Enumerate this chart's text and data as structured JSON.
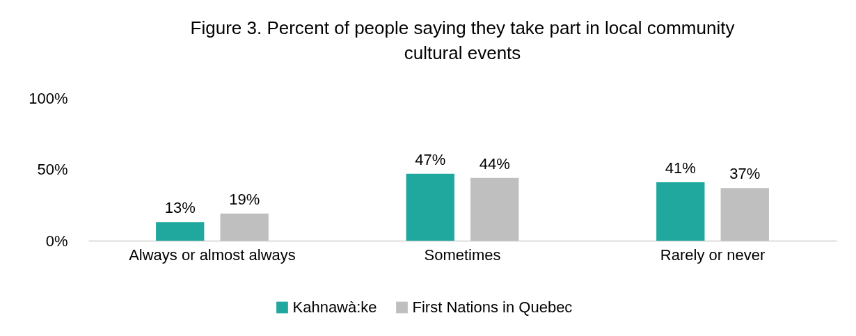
{
  "chart_data": {
    "type": "bar",
    "title": "Figure 3. Percent of people saying they take part in local community cultural events",
    "categories": [
      "Always or almost always",
      "Sometimes",
      "Rarely or never"
    ],
    "series": [
      {
        "name": "Kahnawà:ke",
        "color": "#20a89e",
        "values": [
          13,
          47,
          41
        ],
        "value_labels": [
          "13%",
          "47%",
          "41%"
        ]
      },
      {
        "name": "First Nations in Quebec",
        "color": "#bfbfbf",
        "values": [
          19,
          44,
          37
        ],
        "value_labels": [
          "19%",
          "44%",
          "37%"
        ]
      }
    ],
    "ylim": [
      0,
      100
    ],
    "yticks": [
      {
        "value": 0,
        "label": "0%"
      },
      {
        "value": 50,
        "label": "50%"
      },
      {
        "value": 100,
        "label": "100%"
      }
    ],
    "grid": false,
    "legend": "bottom"
  }
}
